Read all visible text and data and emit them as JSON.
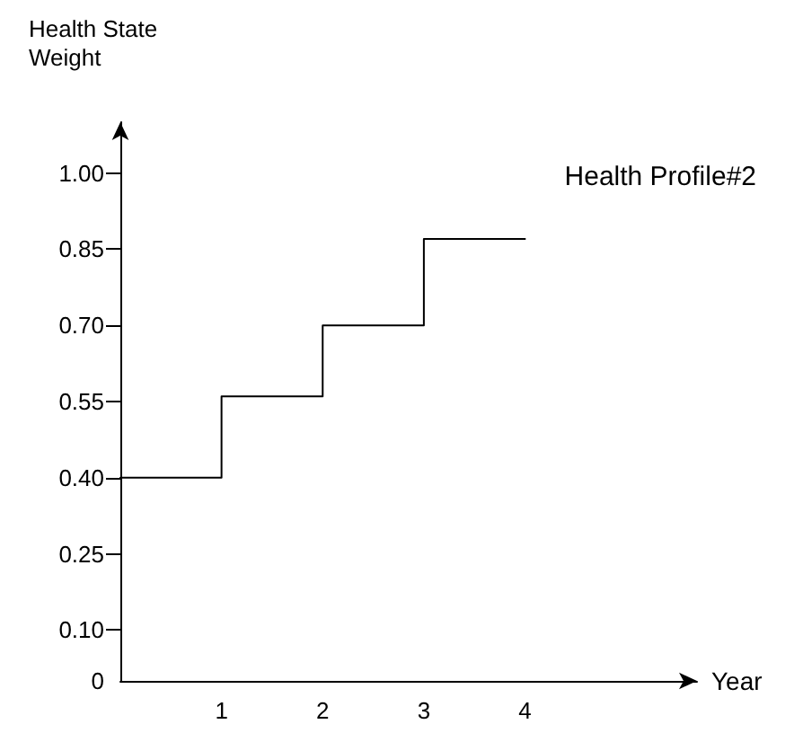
{
  "chart_data": {
    "type": "step",
    "title": "Health Profile#2",
    "xlabel": "Year",
    "ylabel": "Health State Weight",
    "x": [
      0,
      1,
      2,
      3,
      4
    ],
    "series": [
      {
        "color": "#000000",
        "values": [
          0.4,
          0.56,
          0.7,
          0.87,
          0.87
        ]
      }
    ],
    "xlim": [
      0,
      5.7
    ],
    "xticks": [
      1,
      2,
      3,
      4
    ],
    "ylim": [
      0,
      1.1
    ],
    "yticks": [
      0,
      {
        "value": 0.1,
        "label": "0.10"
      },
      {
        "value": 0.25,
        "label": "0.25"
      },
      {
        "value": 0.4,
        "label": "0.40"
      },
      {
        "value": 0.55,
        "label": "0.55"
      },
      {
        "value": 0.7,
        "label": "0.70"
      },
      {
        "value": 0.85,
        "label": "0.85"
      },
      {
        "value": 1,
        "label": "1.00"
      }
    ],
    "grid": false,
    "marker": "none",
    "line_style": "solid"
  }
}
